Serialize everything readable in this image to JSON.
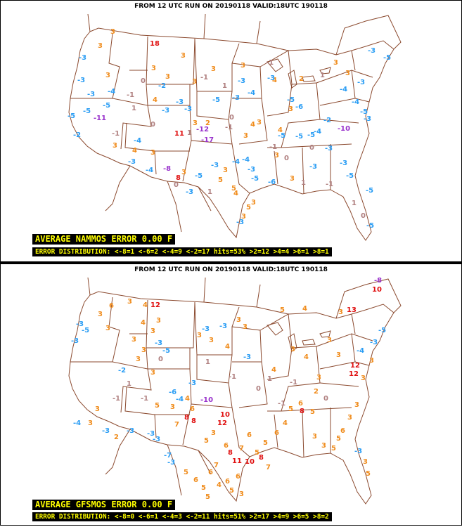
{
  "panels": [
    {
      "header": "FROM 12 UTC RUN ON 20190118 VALID:18UTC 190118",
      "average": "AVERAGE NAMMOS ERROR 0.00 F",
      "distribution": "ERROR DISTRIBUTION: <-8=1 <-6=2 <-4=9 <-2=17 hits=53% >2=12 >4=4 >6=1 >8=1",
      "labels": [
        [
          "18",
          213,
          65
        ],
        [
          "3",
          157,
          48
        ],
        [
          "3",
          139,
          68
        ],
        [
          "3",
          150,
          110
        ],
        [
          "3",
          215,
          100
        ],
        [
          "4",
          217,
          145
        ],
        [
          "3",
          257,
          82
        ],
        [
          "3",
          273,
          119
        ],
        [
          "-3",
          112,
          85
        ],
        [
          "-3",
          110,
          117
        ],
        [
          "-4",
          153,
          133
        ],
        [
          "-3",
          124,
          137
        ],
        [
          "-5",
          146,
          153
        ],
        [
          "-5",
          118,
          161
        ],
        [
          "-5",
          96,
          168
        ],
        [
          "-11",
          133,
          171
        ],
        [
          "-3",
          230,
          160
        ],
        [
          "-3",
          262,
          158
        ],
        [
          "-3",
          250,
          148
        ],
        [
          "-5",
          302,
          145
        ],
        [
          "-3",
          330,
          142
        ],
        [
          "-4",
          352,
          135
        ],
        [
          "-3",
          338,
          118
        ],
        [
          "-5",
          408,
          145
        ],
        [
          "-6",
          420,
          155
        ],
        [
          "-4",
          483,
          130
        ],
        [
          "-4",
          500,
          148
        ],
        [
          "-5",
          512,
          162
        ],
        [
          "-3",
          517,
          172
        ],
        [
          "-3",
          508,
          120
        ],
        [
          "-5",
          545,
          85
        ],
        [
          "-3",
          523,
          75
        ],
        [
          "-12",
          279,
          187
        ],
        [
          "-17",
          286,
          202
        ],
        [
          "-10",
          480,
          186
        ],
        [
          "11",
          248,
          193
        ],
        [
          "-4",
          190,
          203
        ],
        [
          "-3",
          182,
          233
        ],
        [
          "-4",
          207,
          245
        ],
        [
          "-8",
          232,
          243
        ],
        [
          "-3",
          264,
          276
        ],
        [
          "-5",
          277,
          253
        ],
        [
          "-3",
          300,
          238
        ],
        [
          "-4",
          330,
          233
        ],
        [
          "-4",
          344,
          230
        ],
        [
          "-3",
          352,
          244
        ],
        [
          "-5",
          357,
          257
        ],
        [
          "-6",
          381,
          262
        ],
        [
          "-5",
          420,
          197
        ],
        [
          "-5",
          437,
          195
        ],
        [
          "-3",
          462,
          214
        ],
        [
          "-3",
          483,
          235
        ],
        [
          "-5",
          492,
          253
        ],
        [
          "-5",
          520,
          274
        ],
        [
          "-5",
          521,
          324
        ],
        [
          "-3",
          440,
          240
        ],
        [
          "-4",
          446,
          190
        ],
        [
          "-5",
          395,
          196
        ],
        [
          "3",
          160,
          210
        ],
        [
          "3",
          214,
          220
        ],
        [
          "4",
          188,
          217
        ],
        [
          "3",
          258,
          248
        ],
        [
          "8",
          250,
          256
        ],
        [
          "5",
          310,
          259
        ],
        [
          "3",
          317,
          245
        ],
        [
          "5",
          329,
          271
        ],
        [
          "4",
          332,
          278
        ],
        [
          "5",
          350,
          298
        ],
        [
          "3",
          357,
          291
        ],
        [
          "3",
          343,
          311
        ],
        [
          "3",
          412,
          257
        ],
        [
          "-3",
          336,
          319
        ],
        [
          "3",
          410,
          158
        ],
        [
          "4",
          395,
          188
        ],
        [
          "3",
          390,
          224
        ],
        [
          "3",
          346,
          196
        ],
        [
          "4",
          356,
          180
        ],
        [
          "3",
          365,
          177
        ],
        [
          "3",
          300,
          101
        ],
        [
          "3",
          342,
          96
        ],
        [
          "4",
          387,
          117
        ],
        [
          "3",
          474,
          92
        ],
        [
          "3",
          491,
          107
        ],
        [
          "-3",
          380,
          114
        ],
        [
          "-1",
          378,
          92
        ],
        [
          "1",
          266,
          192
        ],
        [
          "-2",
          225,
          125
        ],
        [
          "0",
          200,
          118
        ],
        [
          "-1",
          180,
          138
        ],
        [
          "0",
          214,
          180
        ],
        [
          "-1",
          285,
          113
        ],
        [
          "1",
          316,
          125
        ],
        [
          "0",
          404,
          228
        ],
        [
          "1",
          428,
          263
        ],
        [
          "-1",
          463,
          265
        ],
        [
          "1",
          500,
          292
        ],
        [
          "0",
          513,
          310
        ],
        [
          "2",
          292,
          178
        ],
        [
          "-1",
          159,
          193
        ],
        [
          "0",
          247,
          266
        ],
        [
          "1",
          295,
          276
        ],
        [
          "-2",
          460,
          174
        ],
        [
          "0",
          440,
          213
        ],
        [
          "1",
          455,
          110
        ],
        [
          "-1",
          383,
          212
        ],
        [
          "2",
          425,
          115
        ],
        [
          "0",
          326,
          170
        ],
        [
          "3",
          235,
          112
        ],
        [
          "3",
          274,
          178
        ],
        [
          "-1",
          320,
          184
        ],
        [
          "1",
          187,
          157
        ],
        [
          "-2",
          104,
          195
        ]
      ]
    },
    {
      "header": "FROM 12 UTC RUN ON 20190118 VALID:18UTC 190118",
      "average": "AVERAGE GFSMOS ERROR 0.00 F",
      "distribution": "ERROR DISTRIBUTION: <-8=0 <-6=1 <-4=3 <-2=11 hits=51% >2=17 >4=9 >6=5 >8=2",
      "labels": [
        [
          "12",
          214,
          62
        ],
        [
          "4",
          203,
          62
        ],
        [
          "3",
          181,
          57
        ],
        [
          "6",
          155,
          63
        ],
        [
          "3",
          139,
          75
        ],
        [
          "-3",
          108,
          89
        ],
        [
          "-5",
          116,
          98
        ],
        [
          "-3",
          101,
          113
        ],
        [
          "3",
          150,
          95
        ],
        [
          "4",
          200,
          87
        ],
        [
          "3",
          222,
          84
        ],
        [
          "3",
          214,
          99
        ],
        [
          "3",
          187,
          111
        ],
        [
          "3",
          201,
          126
        ],
        [
          "-3",
          220,
          116
        ],
        [
          "-5",
          231,
          127
        ],
        [
          "3",
          280,
          105
        ],
        [
          "3",
          297,
          112
        ],
        [
          "4",
          320,
          121
        ],
        [
          "3",
          345,
          93
        ],
        [
          "3",
          336,
          83
        ],
        [
          "-3",
          312,
          92
        ],
        [
          "-3",
          287,
          96
        ],
        [
          "5",
          398,
          69
        ],
        [
          "4",
          430,
          67
        ],
        [
          "3",
          481,
          72
        ],
        [
          "13",
          493,
          69
        ],
        [
          "10",
          529,
          40
        ],
        [
          "-8",
          532,
          27
        ],
        [
          "-5",
          538,
          98
        ],
        [
          "-3",
          526,
          115
        ],
        [
          "-4",
          507,
          127
        ],
        [
          "12",
          498,
          148
        ],
        [
          "12",
          496,
          160
        ],
        [
          "3",
          513,
          166
        ],
        [
          "3",
          525,
          141
        ],
        [
          "3",
          465,
          112
        ],
        [
          "3",
          478,
          133
        ],
        [
          "3",
          450,
          165
        ],
        [
          "4",
          432,
          136
        ],
        [
          "3",
          413,
          125
        ],
        [
          "-3",
          346,
          136
        ],
        [
          "4",
          386,
          154
        ],
        [
          "-10",
          285,
          197
        ],
        [
          "-4",
          250,
          196
        ],
        [
          "-6",
          240,
          186
        ],
        [
          "-3",
          268,
          173
        ],
        [
          "3",
          214,
          158
        ],
        [
          "3",
          193,
          139
        ],
        [
          "-1",
          200,
          195
        ],
        [
          "-1",
          160,
          195
        ],
        [
          "-3",
          180,
          241
        ],
        [
          "-3",
          209,
          245
        ],
        [
          "-3",
          217,
          253
        ],
        [
          "-7",
          233,
          276
        ],
        [
          "-3",
          238,
          286
        ],
        [
          "10",
          313,
          218
        ],
        [
          "12",
          309,
          230
        ],
        [
          "5",
          290,
          255
        ],
        [
          "3",
          300,
          244
        ],
        [
          "6",
          318,
          262
        ],
        [
          "8",
          324,
          272
        ],
        [
          "11",
          330,
          284
        ],
        [
          "7",
          340,
          266
        ],
        [
          "6",
          351,
          247
        ],
        [
          "5",
          362,
          272
        ],
        [
          "10",
          348,
          285
        ],
        [
          "8",
          368,
          279
        ],
        [
          "7",
          378,
          293
        ],
        [
          "5",
          374,
          258
        ],
        [
          "6",
          390,
          244
        ],
        [
          "4",
          402,
          230
        ],
        [
          "5",
          410,
          210
        ],
        [
          "6",
          424,
          202
        ],
        [
          "8",
          426,
          213
        ],
        [
          "5",
          441,
          214
        ],
        [
          "3",
          444,
          249
        ],
        [
          "3",
          457,
          262
        ],
        [
          "5",
          471,
          266
        ],
        [
          "5",
          478,
          252
        ],
        [
          "6",
          484,
          241
        ],
        [
          "3",
          494,
          222
        ],
        [
          "3",
          504,
          204
        ],
        [
          "-3",
          504,
          270
        ],
        [
          "3",
          516,
          285
        ],
        [
          "5",
          520,
          302
        ],
        [
          "6",
          335,
          306
        ],
        [
          "6",
          320,
          313
        ],
        [
          "7",
          304,
          290
        ],
        [
          "6",
          296,
          300
        ],
        [
          "6",
          275,
          311
        ],
        [
          "5",
          286,
          322
        ],
        [
          "4",
          308,
          318
        ],
        [
          "5",
          326,
          326
        ],
        [
          "3",
          340,
          331
        ],
        [
          "5",
          261,
          300
        ],
        [
          "5",
          292,
          335
        ],
        [
          "8",
          272,
          227
        ],
        [
          "8",
          262,
          222
        ],
        [
          "7",
          248,
          232
        ],
        [
          "6",
          270,
          210
        ],
        [
          "4",
          263,
          195
        ],
        [
          "3",
          242,
          207
        ],
        [
          "5",
          220,
          205
        ],
        [
          "3",
          135,
          210
        ],
        [
          "3",
          125,
          230
        ],
        [
          "-4",
          104,
          230
        ],
        [
          "-3",
          145,
          241
        ],
        [
          "2",
          162,
          250
        ],
        [
          "1",
          180,
          174
        ],
        [
          "0",
          225,
          139
        ],
        [
          "-2",
          168,
          155
        ],
        [
          "1",
          292,
          143
        ],
        [
          "-1",
          325,
          164
        ],
        [
          "0",
          364,
          181
        ],
        [
          "-1",
          395,
          202
        ],
        [
          "1",
          380,
          167
        ],
        [
          "0",
          460,
          195
        ],
        [
          "2",
          446,
          185
        ],
        [
          "-1",
          412,
          172
        ]
      ]
    }
  ]
}
